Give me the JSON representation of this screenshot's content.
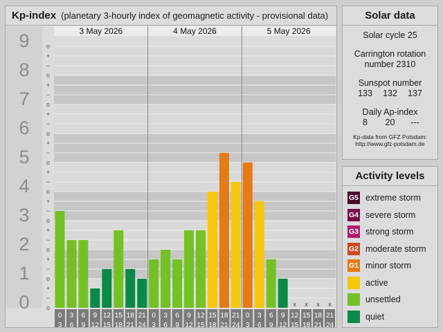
{
  "kp_panel": {
    "title": "Kp-index",
    "subtitle": "(planetary 3-hourly index of geomagnetic activity - provisional data)"
  },
  "chart_data": {
    "type": "bar",
    "title": "Kp-index",
    "subtitle": "(planetary 3-hourly index of geomagnetic activity - provisional data)",
    "ylim": [
      0,
      9
    ],
    "y_ticks": [
      "0",
      "1",
      "2",
      "3",
      "4",
      "5",
      "6",
      "7",
      "8",
      "9"
    ],
    "minor_tick_marks": [
      "o",
      "+",
      "−"
    ],
    "days": [
      "3 May 2026",
      "4 May 2026",
      "5 May 2026"
    ],
    "interval_labels": [
      [
        "0",
        "3"
      ],
      [
        "3",
        "6"
      ],
      [
        "6",
        "9"
      ],
      [
        "9",
        "12"
      ],
      [
        "12",
        "15"
      ],
      [
        "15",
        "18"
      ],
      [
        "18",
        "21"
      ],
      [
        "21",
        "24"
      ]
    ],
    "values": [
      3.333,
      2.333,
      2.333,
      0.667,
      1.333,
      2.667,
      1.333,
      1.0,
      1.667,
      2.0,
      1.667,
      2.667,
      2.667,
      4.0,
      5.333,
      4.333,
      5.0,
      3.667,
      1.667,
      1.0,
      null,
      null,
      null,
      null
    ],
    "colors": [
      "#74c126",
      "#74c126",
      "#74c126",
      "#0a8a47",
      "#0a8a47",
      "#74c126",
      "#0a8a47",
      "#0a8a47",
      "#74c126",
      "#74c126",
      "#74c126",
      "#74c126",
      "#74c126",
      "#f7c50a",
      "#e67a14",
      "#f7c50a",
      "#e67a14",
      "#f7c50a",
      "#74c126",
      "#0a8a47",
      null,
      null,
      null,
      null
    ],
    "missing_marker": "x",
    "grid": true
  },
  "solar": {
    "title": "Solar data",
    "cycle": "Solar cycle 25",
    "carrington_1": "Carrington rotation",
    "carrington_2": "number 2310",
    "sunspot_label": "Sunspot number",
    "sunspot_values": [
      "133",
      "132",
      "137"
    ],
    "ap_label": "Daily Ap-index",
    "ap_values": [
      "8",
      "20",
      "---"
    ],
    "credit_1": "Kp-data from GFZ Potsdam:",
    "credit_2": "http://www.gfz-potsdam.de"
  },
  "levels": {
    "title": "Activity levels",
    "items": [
      {
        "code": "G5",
        "label": "extreme storm",
        "color": "#4c0a2e"
      },
      {
        "code": "G4",
        "label": "severe storm",
        "color": "#7a0a4e"
      },
      {
        "code": "G3",
        "label": "strong storm",
        "color": "#b01a6c"
      },
      {
        "code": "G2",
        "label": "moderate storm",
        "color": "#d2461c"
      },
      {
        "code": "G1",
        "label": "minor storm",
        "color": "#e67a14"
      },
      {
        "code": "",
        "label": "active",
        "color": "#f7c50a"
      },
      {
        "code": "",
        "label": "unsettled",
        "color": "#74c126"
      },
      {
        "code": "",
        "label": "quiet",
        "color": "#0a8a47"
      }
    ]
  }
}
